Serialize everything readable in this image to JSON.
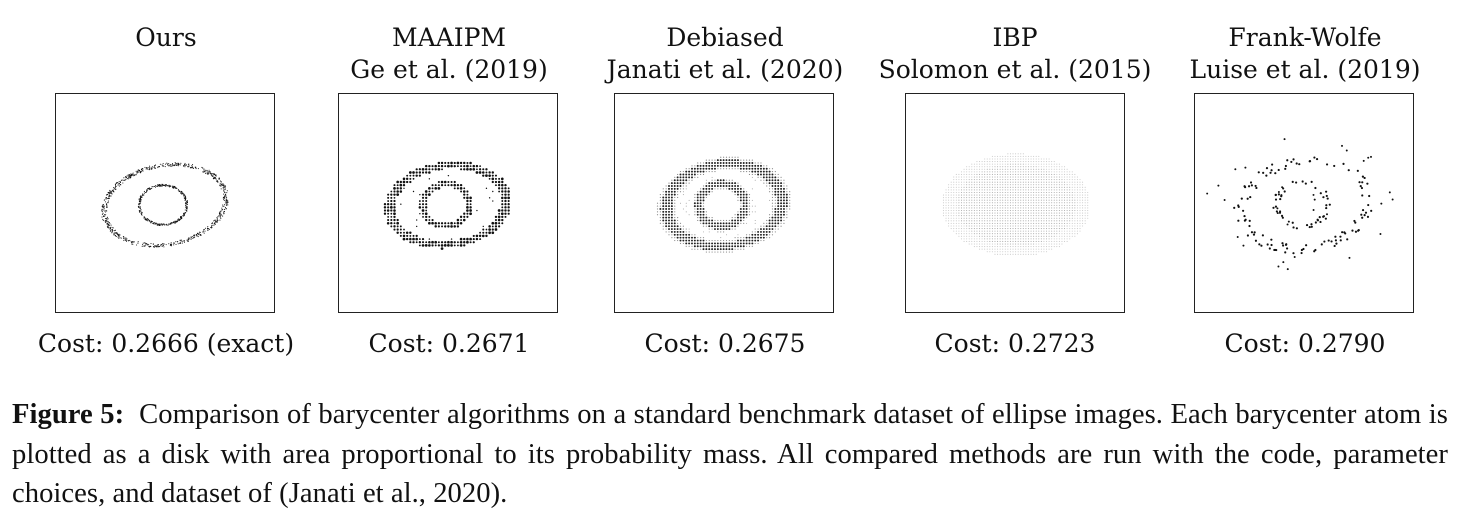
{
  "panels": [
    {
      "title1": "Ours",
      "title2": "",
      "cost": "Cost: 0.2666 (exact)"
    },
    {
      "title1": "MAAIPM",
      "title2": "Ge et al. (2019)",
      "cost": "Cost: 0.2671"
    },
    {
      "title1": "Debiased",
      "title2": "Janati et al. (2020)",
      "cost": "Cost: 0.2675"
    },
    {
      "title1": "IBP",
      "title2": "Solomon et al. (2015)",
      "cost": "Cost: 0.2723"
    },
    {
      "title1": "Frank-Wolfe",
      "title2": "Luise et al. (2019)",
      "cost": "Cost: 0.2790"
    }
  ],
  "caption": {
    "label": "Figure 5:",
    "text": "Comparison of barycenter algorithms on a standard benchmark dataset of ellipse images. Each barycenter atom is plotted as a disk with area proportional to its probability mass. All compared methods are run with the code, parameter choices, and dataset of (Janati et al., 2020)."
  }
}
